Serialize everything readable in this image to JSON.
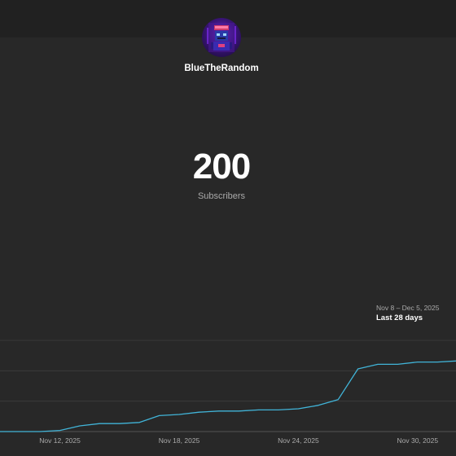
{
  "channel": {
    "name": "BlueTheRandom",
    "avatar_icon": "robot-avatar-icon"
  },
  "stats": {
    "subscriber_count": "200",
    "subscriber_label": "Subscribers"
  },
  "range": {
    "dates": "Nov 8 – Dec 5, 2025",
    "label": "Last 28 days"
  },
  "chart_data": {
    "type": "line",
    "x": [
      "2025-11-08",
      "2025-11-09",
      "2025-11-10",
      "2025-11-11",
      "2025-11-12",
      "2025-11-13",
      "2025-11-14",
      "2025-11-15",
      "2025-11-16",
      "2025-11-17",
      "2025-11-18",
      "2025-11-19",
      "2025-11-20",
      "2025-11-21",
      "2025-11-22",
      "2025-11-23",
      "2025-11-24",
      "2025-11-25",
      "2025-11-26",
      "2025-11-27",
      "2025-11-28",
      "2025-11-29",
      "2025-11-30",
      "2025-12-01",
      "2025-12-02",
      "2025-12-03",
      "2025-12-04",
      "2025-12-05"
    ],
    "series": [
      {
        "values": [
          120,
          120,
          120,
          120,
          121,
          125,
          127,
          127,
          128,
          134,
          135,
          137,
          138,
          138,
          139,
          139,
          140,
          143,
          148,
          175,
          179,
          179,
          181,
          181,
          182,
          182,
          182,
          182
        ],
        "color": "#41b4d8"
      }
    ],
    "x_ticks": [
      "Nov 12, 2025",
      "Nov 18, 2025",
      "Nov 24, 2025",
      "Nov 30, 2025"
    ],
    "ylim": [
      120,
      200
    ],
    "grid": true,
    "title": "",
    "xlabel": "",
    "ylabel": ""
  }
}
